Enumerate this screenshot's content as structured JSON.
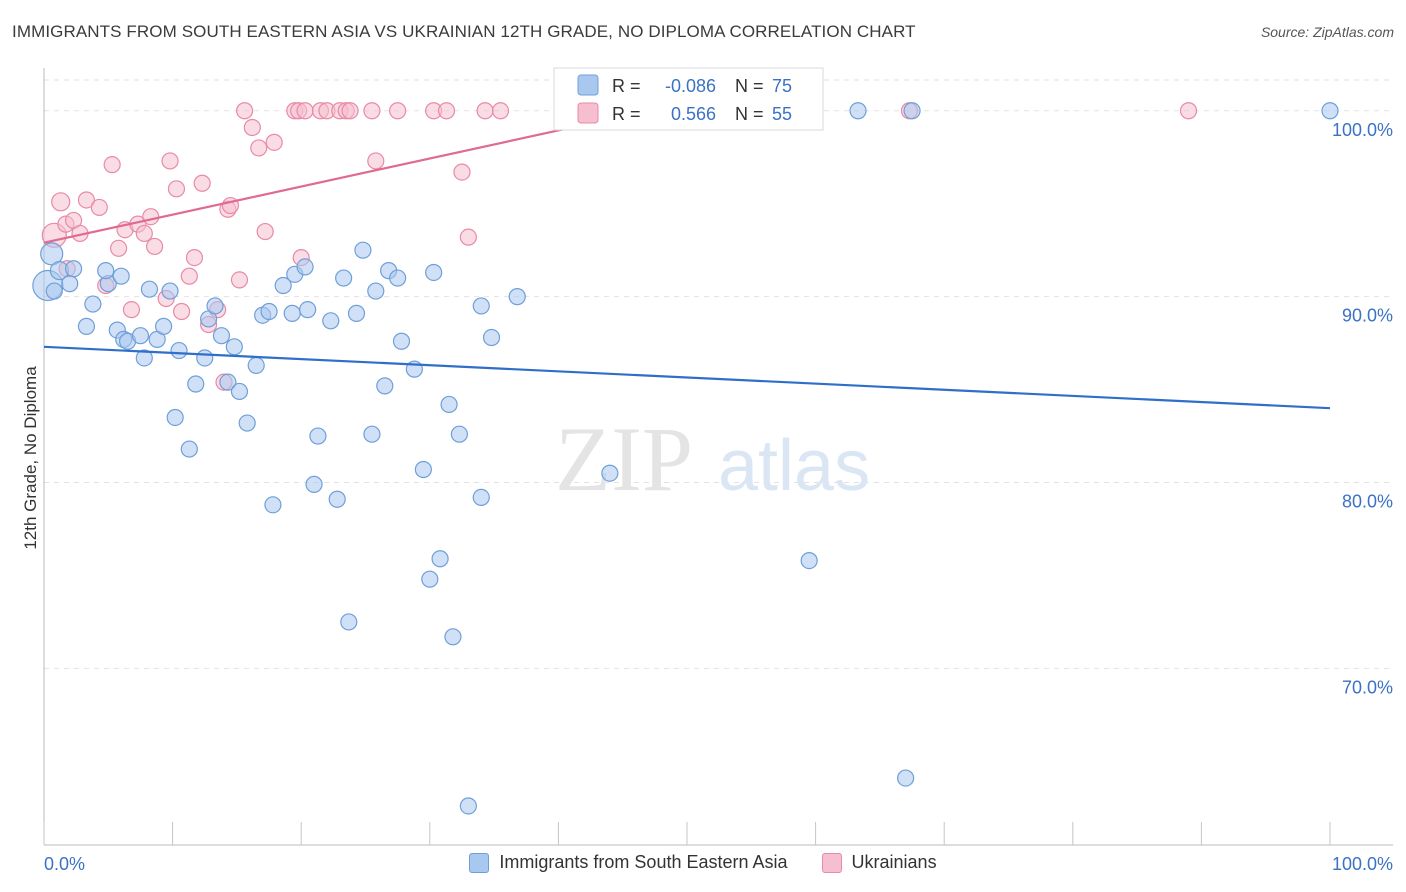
{
  "header": {
    "title": "IMMIGRANTS FROM SOUTH EASTERN ASIA VS UKRAINIAN 12TH GRADE, NO DIPLOMA CORRELATION CHART",
    "source": "Source: ZipAtlas.com"
  },
  "watermark": {
    "zip": "ZIP",
    "atlas": "atlas"
  },
  "stats": {
    "series1": {
      "r_label": "R =",
      "r_value": "-0.086",
      "n_label": "N =",
      "n_value": "75"
    },
    "series2": {
      "r_label": "R =",
      "r_value": "0.566",
      "n_label": "N =",
      "n_value": "55"
    }
  },
  "legend": {
    "series1": "Immigrants from South Eastern Asia",
    "series2": "Ukrainians"
  },
  "colors": {
    "blue_fill": "#a9c8f0",
    "blue_stroke": "#6f9fd8",
    "blue_line": "#2f6fc9",
    "pink_fill": "#f6bfd0",
    "pink_stroke": "#e88aa8",
    "pink_line": "#e06a92",
    "tick_label": "#3a72c4"
  },
  "chart_data": {
    "type": "scatter",
    "title": "IMMIGRANTS FROM SOUTH EASTERN ASIA VS UKRAINIAN 12TH GRADE, NO DIPLOMA CORRELATION CHART",
    "xlabel": "",
    "ylabel": "12th Grade, No Diploma",
    "xlim": [
      0,
      100
    ],
    "ylim": [
      60.5,
      102.3
    ],
    "x_tick_labels": [
      "0.0%",
      "100.0%"
    ],
    "y_ticks": [
      70,
      80,
      90,
      100
    ],
    "y_tick_labels": [
      "70.0%",
      "80.0%",
      "90.0%",
      "100.0%"
    ],
    "grid": true,
    "legend_position": "bottom",
    "series": [
      {
        "name": "Immigrants from South Eastern Asia",
        "color": "#a9c8f0",
        "trend": {
          "x": [
            0,
            100
          ],
          "y": [
            87.3,
            84.0
          ]
        },
        "points": [
          {
            "x": 0.3,
            "y": 90.6,
            "s": 15
          },
          {
            "x": 0.6,
            "y": 92.3,
            "s": 11
          },
          {
            "x": 1.2,
            "y": 91.4,
            "s": 9
          },
          {
            "x": 2.0,
            "y": 90.7,
            "s": 8
          },
          {
            "x": 2.3,
            "y": 91.5,
            "s": 8
          },
          {
            "x": 3.3,
            "y": 88.4,
            "s": 8
          },
          {
            "x": 3.8,
            "y": 89.6,
            "s": 8
          },
          {
            "x": 5.0,
            "y": 90.7,
            "s": 8
          },
          {
            "x": 4.8,
            "y": 91.4,
            "s": 8
          },
          {
            "x": 6.0,
            "y": 91.1,
            "s": 8
          },
          {
            "x": 5.7,
            "y": 88.2,
            "s": 8
          },
          {
            "x": 6.2,
            "y": 87.7,
            "s": 8
          },
          {
            "x": 6.5,
            "y": 87.6,
            "s": 8
          },
          {
            "x": 7.5,
            "y": 87.9,
            "s": 8
          },
          {
            "x": 7.8,
            "y": 86.7,
            "s": 8
          },
          {
            "x": 8.2,
            "y": 90.4,
            "s": 8
          },
          {
            "x": 8.8,
            "y": 87.7,
            "s": 8
          },
          {
            "x": 9.3,
            "y": 88.4,
            "s": 8
          },
          {
            "x": 9.8,
            "y": 90.3,
            "s": 8
          },
          {
            "x": 10.5,
            "y": 87.1,
            "s": 8
          },
          {
            "x": 10.2,
            "y": 83.5,
            "s": 8
          },
          {
            "x": 11.3,
            "y": 81.8,
            "s": 8
          },
          {
            "x": 11.8,
            "y": 85.3,
            "s": 8
          },
          {
            "x": 12.5,
            "y": 86.7,
            "s": 8
          },
          {
            "x": 12.8,
            "y": 88.8,
            "s": 8
          },
          {
            "x": 13.3,
            "y": 89.5,
            "s": 8
          },
          {
            "x": 13.8,
            "y": 87.9,
            "s": 8
          },
          {
            "x": 14.3,
            "y": 85.4,
            "s": 8
          },
          {
            "x": 14.8,
            "y": 87.3,
            "s": 8
          },
          {
            "x": 15.2,
            "y": 84.9,
            "s": 8
          },
          {
            "x": 15.8,
            "y": 83.2,
            "s": 8
          },
          {
            "x": 16.5,
            "y": 86.3,
            "s": 8
          },
          {
            "x": 17.0,
            "y": 89.0,
            "s": 8
          },
          {
            "x": 17.5,
            "y": 89.2,
            "s": 8
          },
          {
            "x": 17.8,
            "y": 78.8,
            "s": 8
          },
          {
            "x": 18.6,
            "y": 90.6,
            "s": 8
          },
          {
            "x": 19.3,
            "y": 89.1,
            "s": 8
          },
          {
            "x": 19.5,
            "y": 91.2,
            "s": 8
          },
          {
            "x": 20.3,
            "y": 91.6,
            "s": 8
          },
          {
            "x": 20.5,
            "y": 89.3,
            "s": 8
          },
          {
            "x": 21.0,
            "y": 79.9,
            "s": 8
          },
          {
            "x": 21.3,
            "y": 82.5,
            "s": 8
          },
          {
            "x": 22.3,
            "y": 88.7,
            "s": 8
          },
          {
            "x": 22.8,
            "y": 79.1,
            "s": 8
          },
          {
            "x": 23.3,
            "y": 91.0,
            "s": 8
          },
          {
            "x": 23.7,
            "y": 72.5,
            "s": 8
          },
          {
            "x": 24.3,
            "y": 89.1,
            "s": 8
          },
          {
            "x": 24.8,
            "y": 92.5,
            "s": 8
          },
          {
            "x": 25.5,
            "y": 82.6,
            "s": 8
          },
          {
            "x": 25.8,
            "y": 90.3,
            "s": 8
          },
          {
            "x": 26.5,
            "y": 85.2,
            "s": 8
          },
          {
            "x": 26.8,
            "y": 91.4,
            "s": 8
          },
          {
            "x": 27.5,
            "y": 91.0,
            "s": 8
          },
          {
            "x": 27.8,
            "y": 87.6,
            "s": 8
          },
          {
            "x": 28.8,
            "y": 86.1,
            "s": 8
          },
          {
            "x": 29.5,
            "y": 80.7,
            "s": 8
          },
          {
            "x": 30.0,
            "y": 74.8,
            "s": 8
          },
          {
            "x": 30.3,
            "y": 91.3,
            "s": 8
          },
          {
            "x": 30.8,
            "y": 75.9,
            "s": 8
          },
          {
            "x": 31.5,
            "y": 84.2,
            "s": 8
          },
          {
            "x": 31.8,
            "y": 71.7,
            "s": 8
          },
          {
            "x": 32.3,
            "y": 82.6,
            "s": 8
          },
          {
            "x": 33.0,
            "y": 62.6,
            "s": 8
          },
          {
            "x": 34.0,
            "y": 79.2,
            "s": 8
          },
          {
            "x": 34.0,
            "y": 89.5,
            "s": 8
          },
          {
            "x": 34.8,
            "y": 87.8,
            "s": 8
          },
          {
            "x": 36.8,
            "y": 90.0,
            "s": 8
          },
          {
            "x": 44.0,
            "y": 80.5,
            "s": 8
          },
          {
            "x": 43.0,
            "y": 99.9,
            "s": 8
          },
          {
            "x": 59.5,
            "y": 75.8,
            "s": 8
          },
          {
            "x": 63.3,
            "y": 100.0,
            "s": 8
          },
          {
            "x": 67.0,
            "y": 64.1,
            "s": 8
          },
          {
            "x": 67.5,
            "y": 100.0,
            "s": 8
          },
          {
            "x": 100.0,
            "y": 100.0,
            "s": 8
          },
          {
            "x": 0.8,
            "y": 90.3,
            "s": 8
          }
        ]
      },
      {
        "name": "Ukrainians",
        "color": "#f6bfd0",
        "trend": {
          "x": [
            0,
            47
          ],
          "y": [
            92.9,
            100.0
          ]
        },
        "points": [
          {
            "x": 0.8,
            "y": 93.3,
            "s": 12
          },
          {
            "x": 1.3,
            "y": 95.1,
            "s": 9
          },
          {
            "x": 1.8,
            "y": 91.5,
            "s": 8
          },
          {
            "x": 1.7,
            "y": 93.9,
            "s": 8
          },
          {
            "x": 2.3,
            "y": 94.1,
            "s": 8
          },
          {
            "x": 2.8,
            "y": 93.4,
            "s": 8
          },
          {
            "x": 3.3,
            "y": 95.2,
            "s": 8
          },
          {
            "x": 4.3,
            "y": 94.8,
            "s": 8
          },
          {
            "x": 4.8,
            "y": 90.6,
            "s": 8
          },
          {
            "x": 5.3,
            "y": 97.1,
            "s": 8
          },
          {
            "x": 5.8,
            "y": 92.6,
            "s": 8
          },
          {
            "x": 6.3,
            "y": 93.6,
            "s": 8
          },
          {
            "x": 6.8,
            "y": 89.3,
            "s": 8
          },
          {
            "x": 7.3,
            "y": 93.9,
            "s": 8
          },
          {
            "x": 7.8,
            "y": 93.4,
            "s": 8
          },
          {
            "x": 8.3,
            "y": 94.3,
            "s": 8
          },
          {
            "x": 8.6,
            "y": 92.7,
            "s": 8
          },
          {
            "x": 9.5,
            "y": 89.9,
            "s": 8
          },
          {
            "x": 9.8,
            "y": 97.3,
            "s": 8
          },
          {
            "x": 10.3,
            "y": 95.8,
            "s": 8
          },
          {
            "x": 10.7,
            "y": 89.2,
            "s": 8
          },
          {
            "x": 11.3,
            "y": 91.1,
            "s": 8
          },
          {
            "x": 11.7,
            "y": 92.1,
            "s": 8
          },
          {
            "x": 12.3,
            "y": 96.1,
            "s": 8
          },
          {
            "x": 12.8,
            "y": 88.5,
            "s": 8
          },
          {
            "x": 13.5,
            "y": 89.3,
            "s": 8
          },
          {
            "x": 14.0,
            "y": 85.4,
            "s": 8
          },
          {
            "x": 14.3,
            "y": 94.7,
            "s": 8
          },
          {
            "x": 14.5,
            "y": 94.9,
            "s": 8
          },
          {
            "x": 15.2,
            "y": 90.9,
            "s": 8
          },
          {
            "x": 15.6,
            "y": 100.0,
            "s": 8
          },
          {
            "x": 16.2,
            "y": 99.1,
            "s": 8
          },
          {
            "x": 16.7,
            "y": 98.0,
            "s": 8
          },
          {
            "x": 17.2,
            "y": 93.5,
            "s": 8
          },
          {
            "x": 17.9,
            "y": 98.3,
            "s": 8
          },
          {
            "x": 19.5,
            "y": 100.0,
            "s": 8
          },
          {
            "x": 19.8,
            "y": 100.0,
            "s": 8
          },
          {
            "x": 20.0,
            "y": 92.1,
            "s": 8
          },
          {
            "x": 20.3,
            "y": 100.0,
            "s": 8
          },
          {
            "x": 21.5,
            "y": 100.0,
            "s": 8
          },
          {
            "x": 22.0,
            "y": 100.0,
            "s": 8
          },
          {
            "x": 23.0,
            "y": 100.0,
            "s": 8
          },
          {
            "x": 23.5,
            "y": 100.0,
            "s": 8
          },
          {
            "x": 23.8,
            "y": 100.0,
            "s": 8
          },
          {
            "x": 25.5,
            "y": 100.0,
            "s": 8
          },
          {
            "x": 25.8,
            "y": 97.3,
            "s": 8
          },
          {
            "x": 27.5,
            "y": 100.0,
            "s": 8
          },
          {
            "x": 30.3,
            "y": 100.0,
            "s": 8
          },
          {
            "x": 31.3,
            "y": 100.0,
            "s": 8
          },
          {
            "x": 32.5,
            "y": 96.7,
            "s": 8
          },
          {
            "x": 33.0,
            "y": 93.2,
            "s": 8
          },
          {
            "x": 34.3,
            "y": 100.0,
            "s": 8
          },
          {
            "x": 35.5,
            "y": 100.0,
            "s": 8
          },
          {
            "x": 67.3,
            "y": 100.0,
            "s": 8
          },
          {
            "x": 89.0,
            "y": 100.0,
            "s": 8
          }
        ]
      }
    ]
  }
}
